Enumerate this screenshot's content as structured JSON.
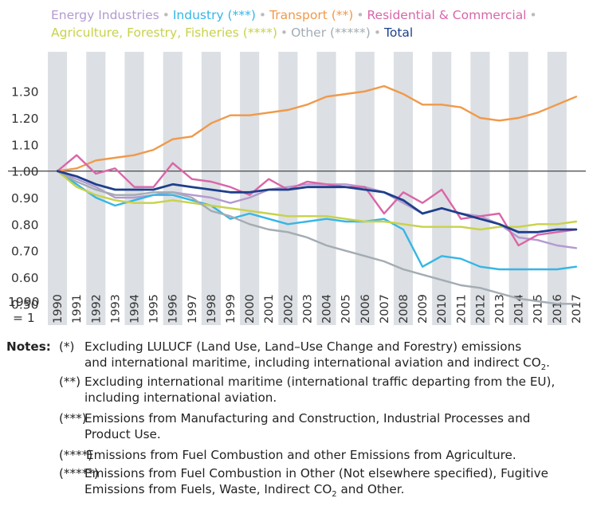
{
  "chart_data": {
    "type": "line",
    "x": [
      1990,
      1991,
      1992,
      1993,
      1994,
      1995,
      1996,
      1997,
      1998,
      1999,
      2000,
      2001,
      2002,
      2003,
      2004,
      2005,
      2006,
      2007,
      2008,
      2009,
      2010,
      2011,
      2012,
      2013,
      2014,
      2015,
      2016,
      2017
    ],
    "ylim": [
      0.45,
      1.35
    ],
    "yticks": [
      "1.30",
      "1.20",
      "1.10",
      "1.00",
      "0.90",
      "0.80",
      "0.70",
      "0.60",
      "0.50"
    ],
    "ylabel_line1": "1990",
    "ylabel_line2": "= 1",
    "reference_line": 1.0,
    "grid": "alternating vertical bands",
    "legend_position": "top",
    "series": [
      {
        "name": "Energy Industries",
        "color": "#b39ad0",
        "values": [
          1.0,
          0.97,
          0.94,
          0.9,
          0.9,
          0.91,
          0.92,
          0.91,
          0.9,
          0.88,
          0.9,
          0.93,
          0.94,
          0.95,
          0.95,
          0.95,
          0.94,
          0.92,
          0.88,
          0.84,
          0.86,
          0.84,
          0.83,
          0.8,
          0.75,
          0.74,
          0.72,
          0.71
        ]
      },
      {
        "name": "Industry (***)",
        "color": "#35b6e6",
        "values": [
          1.0,
          0.95,
          0.9,
          0.87,
          0.89,
          0.91,
          0.91,
          0.89,
          0.87,
          0.82,
          0.84,
          0.82,
          0.8,
          0.81,
          0.82,
          0.81,
          0.81,
          0.82,
          0.78,
          0.64,
          0.68,
          0.67,
          0.64,
          0.63,
          0.63,
          0.63,
          0.63,
          0.64
        ]
      },
      {
        "name": "Transport (**)",
        "color": "#f0994a",
        "values": [
          1.0,
          1.01,
          1.04,
          1.05,
          1.06,
          1.08,
          1.12,
          1.13,
          1.18,
          1.21,
          1.21,
          1.22,
          1.23,
          1.25,
          1.28,
          1.29,
          1.3,
          1.32,
          1.29,
          1.25,
          1.25,
          1.24,
          1.2,
          1.19,
          1.2,
          1.22,
          1.25,
          1.28
        ]
      },
      {
        "name": "Residential & Commercial",
        "color": "#d966a8",
        "values": [
          1.0,
          1.06,
          0.99,
          1.01,
          0.94,
          0.94,
          1.03,
          0.97,
          0.96,
          0.94,
          0.91,
          0.97,
          0.93,
          0.96,
          0.95,
          0.94,
          0.94,
          0.84,
          0.92,
          0.88,
          0.93,
          0.82,
          0.83,
          0.84,
          0.72,
          0.76,
          0.77,
          0.78
        ]
      },
      {
        "name": "Agriculture, Forestry, Fisheries (****)",
        "color": "#c8d24a",
        "values": [
          1.0,
          0.94,
          0.91,
          0.89,
          0.88,
          0.88,
          0.89,
          0.88,
          0.87,
          0.86,
          0.85,
          0.84,
          0.83,
          0.83,
          0.83,
          0.82,
          0.81,
          0.81,
          0.8,
          0.79,
          0.79,
          0.79,
          0.78,
          0.79,
          0.79,
          0.8,
          0.8,
          0.81
        ]
      },
      {
        "name": "Other (*****)",
        "color": "#a3acb3",
        "values": [
          1.0,
          0.96,
          0.93,
          0.91,
          0.91,
          0.92,
          0.92,
          0.9,
          0.85,
          0.83,
          0.8,
          0.78,
          0.77,
          0.75,
          0.72,
          0.7,
          0.68,
          0.66,
          0.63,
          0.61,
          0.59,
          0.57,
          0.56,
          0.54,
          0.52,
          0.51,
          0.5,
          0.5
        ]
      },
      {
        "name": "Total",
        "color": "#1d3f8c",
        "values": [
          1.0,
          0.98,
          0.95,
          0.93,
          0.93,
          0.93,
          0.95,
          0.94,
          0.93,
          0.92,
          0.92,
          0.93,
          0.93,
          0.94,
          0.94,
          0.94,
          0.93,
          0.92,
          0.89,
          0.84,
          0.86,
          0.84,
          0.82,
          0.8,
          0.77,
          0.77,
          0.78,
          0.78
        ]
      }
    ]
  },
  "notes": {
    "heading": "Notes:",
    "items": [
      {
        "mark": "(*)",
        "text_a": "Excluding LULUCF (Land Use, Land–Use Change and Forestry) emissions",
        "text_b": "and international maritime, including international aviation and indirect CO",
        "sub": "2",
        "text_c": "."
      },
      {
        "mark": "(**)",
        "text_a": "Excluding international maritime (international traffic departing from the EU),",
        "text_b": "including international aviation."
      },
      {
        "mark": "(***)",
        "text_a": "Emissions from Manufacturing and Construction, Industrial Processes and",
        "text_b": "Product Use."
      },
      {
        "mark": "(****)",
        "text_a": "Emissions from Fuel Combustion and other Emissions from Agriculture."
      },
      {
        "mark": "(*****)",
        "text_a": "Emissions from Fuel Combustion in Other (Not elsewhere specified), Fugitive",
        "text_b": "Emissions from Fuels, Waste, Indirect CO",
        "sub": "2",
        "text_c": " and Other."
      }
    ]
  }
}
